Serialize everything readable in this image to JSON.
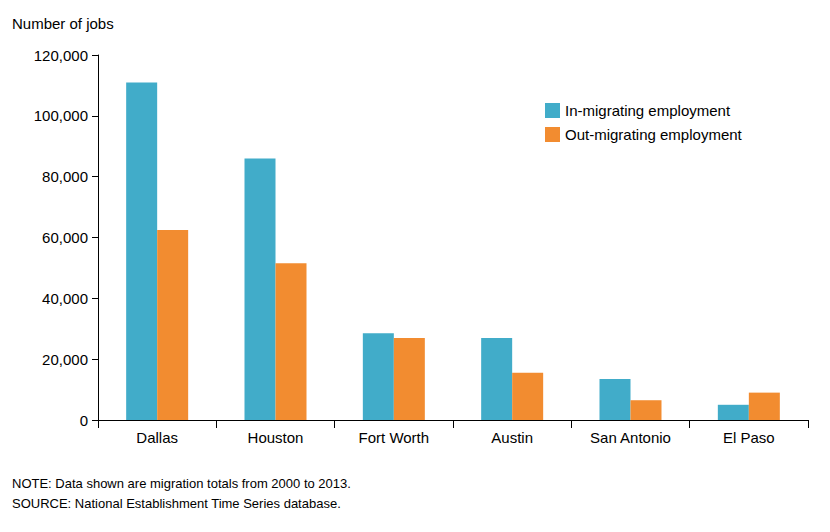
{
  "chart_data": {
    "type": "bar",
    "y_label": "Number of jobs",
    "categories": [
      "Dallas",
      "Houston",
      "Fort Worth",
      "Austin",
      "San Antonio",
      "El Paso"
    ],
    "series": [
      {
        "name": "In-migrating employment",
        "color": "#41acc9",
        "values": [
          111000,
          86000,
          28500,
          27000,
          13500,
          5000
        ]
      },
      {
        "name": "Out-migrating employment",
        "color": "#f28c30",
        "values": [
          62500,
          51500,
          27000,
          15500,
          6500,
          9000
        ]
      }
    ],
    "ylim": [
      0,
      120000
    ],
    "yticks": [
      0,
      {
        "value": 20000,
        "label": "20,000"
      },
      {
        "value": 40000,
        "label": "40,000"
      },
      {
        "value": 60000,
        "label": "60,000"
      },
      {
        "value": 80000,
        "label": "80,000"
      },
      {
        "value": 100000,
        "label": "100,000"
      },
      {
        "value": 120000,
        "label": "120,000"
      }
    ],
    "grid": false,
    "legend": "upper right",
    "notes": [
      "NOTE: Data shown are migration totals from 2000 to 2013.",
      "SOURCE: National Establishment Time Series database."
    ]
  }
}
